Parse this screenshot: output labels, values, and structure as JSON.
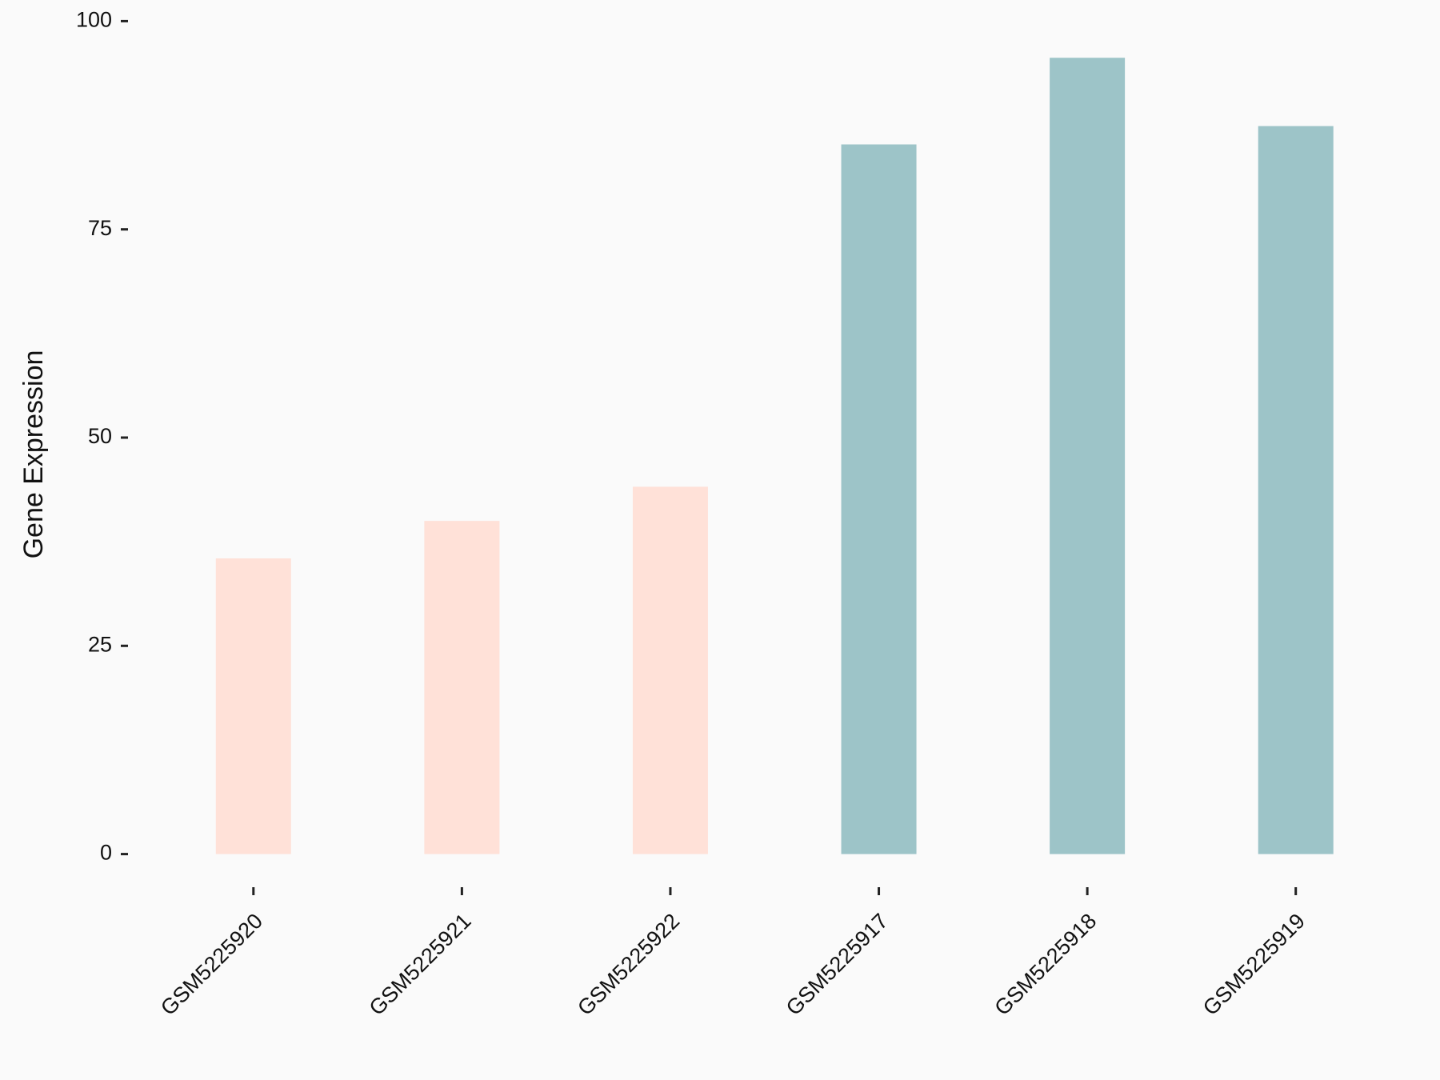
{
  "chart_data": {
    "type": "bar",
    "y_label": "Gene Expression",
    "categories": [
      "GSM5225920",
      "GSM5225921",
      "GSM5225922",
      "GSM5225917",
      "GSM5225918",
      "GSM5225919"
    ],
    "values": [
      35.5,
      40.0,
      44.1,
      85.2,
      95.6,
      87.4
    ],
    "colors": [
      "#ffe1d8",
      "#ffe1d8",
      "#ffe1d8",
      "#9dc4c8",
      "#9dc4c8",
      "#9dc4c8"
    ],
    "ylim": [
      0,
      100
    ],
    "yticks": [
      0,
      25,
      50,
      75,
      100
    ]
  }
}
